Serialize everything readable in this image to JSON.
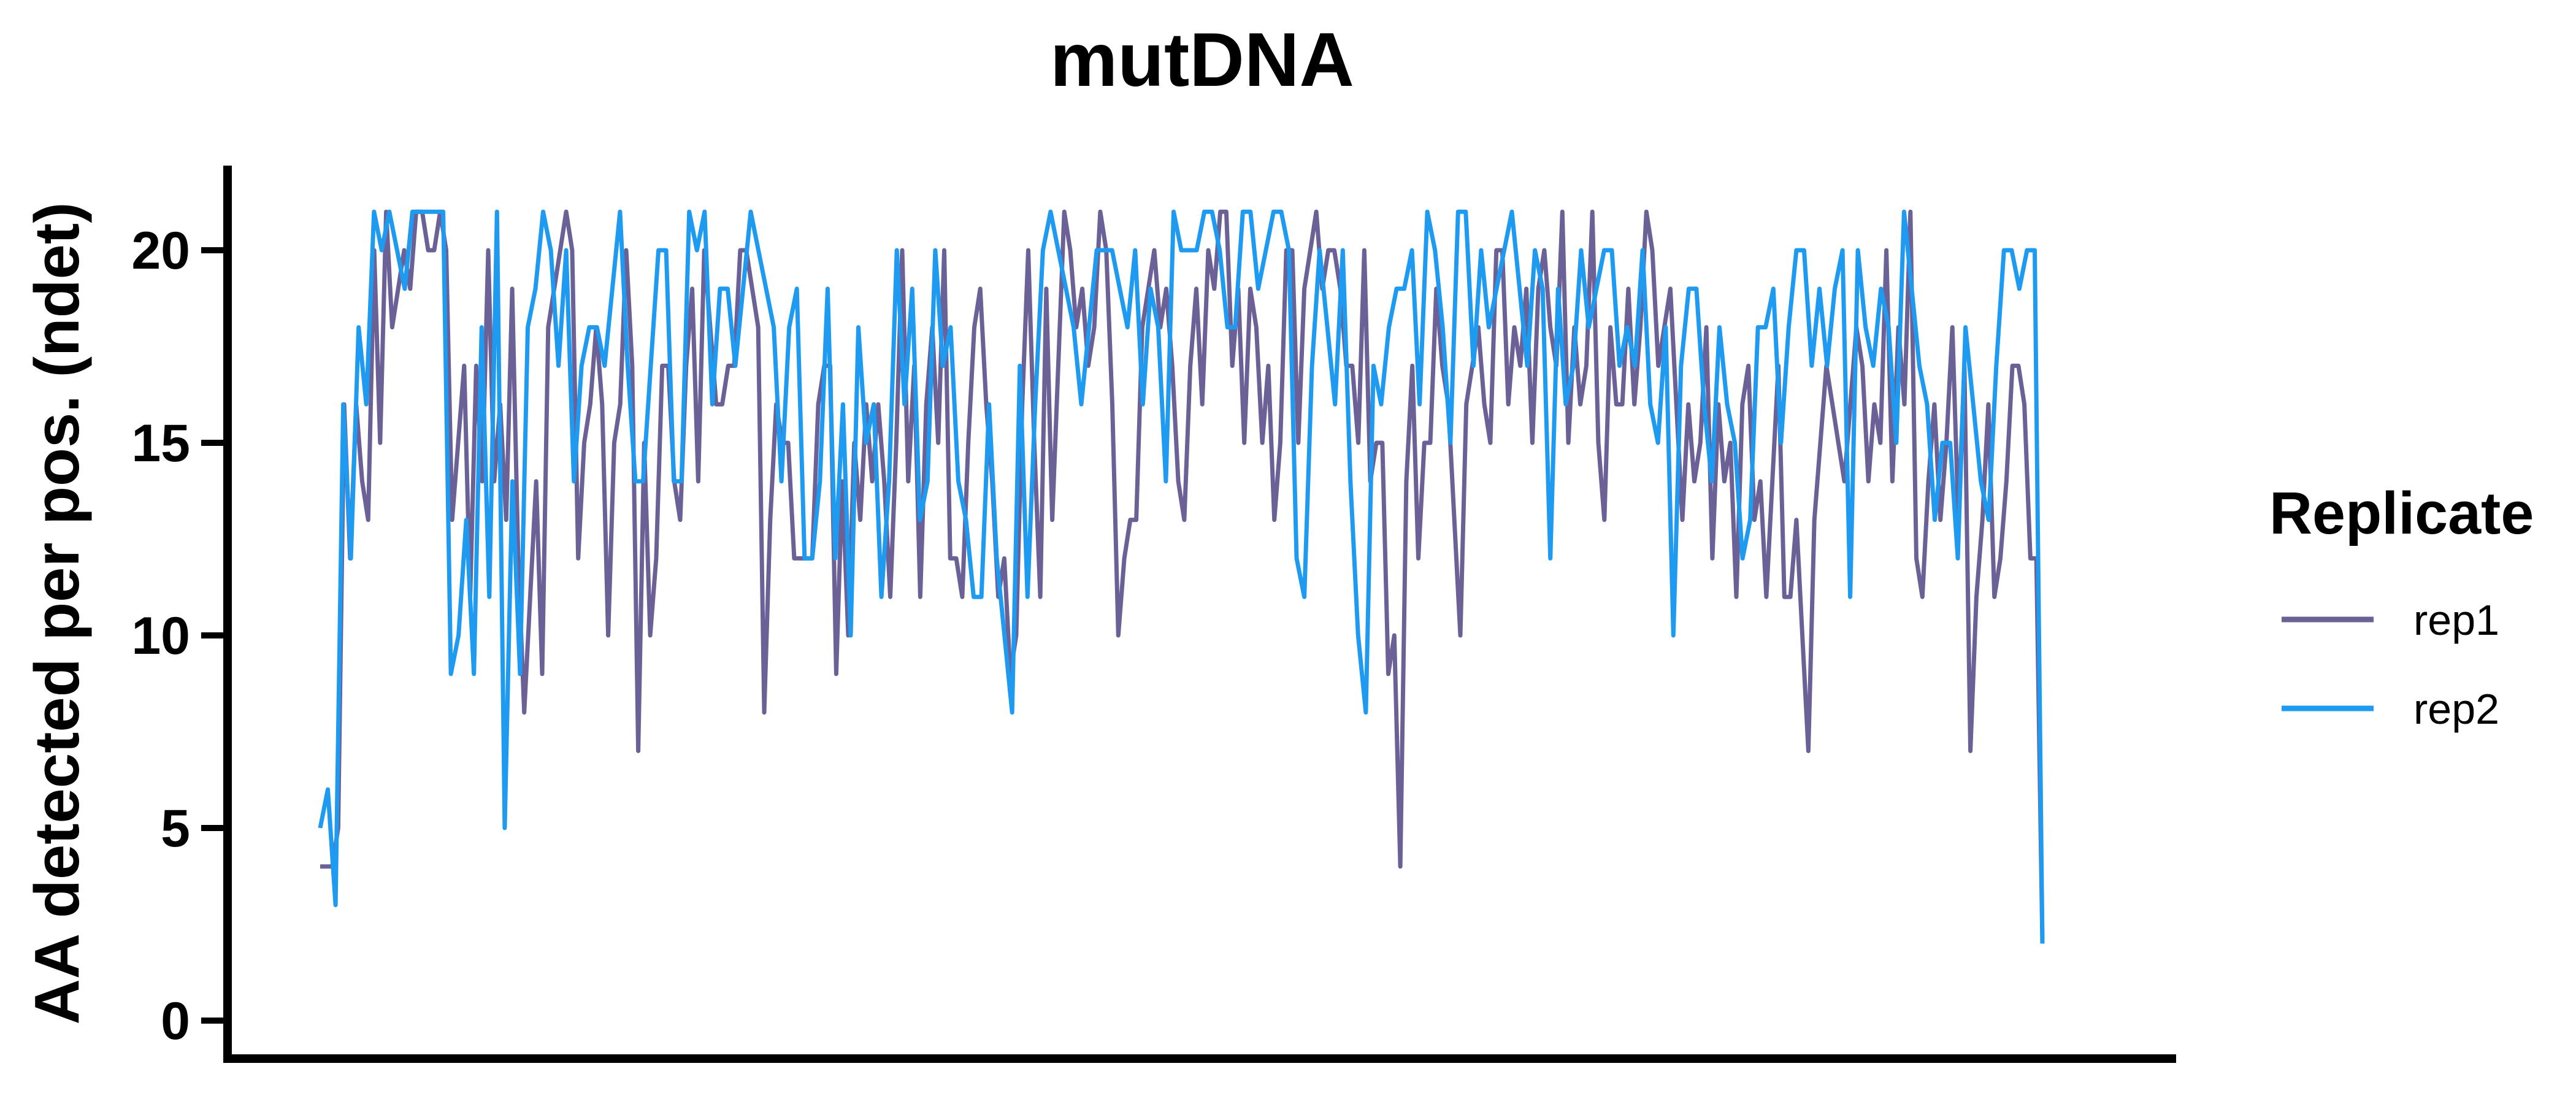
{
  "chart_data": {
    "type": "line",
    "title": "mutDNA",
    "xlabel": "",
    "ylabel": "AA detected per pos. (ndet)",
    "ylim": [
      0,
      22
    ],
    "yticks": [
      0,
      5,
      10,
      15,
      20
    ],
    "x_tick_labels": [],
    "grid": false,
    "legend": {
      "title": "Replicate",
      "position": "right"
    },
    "series": [
      {
        "name": "rep1",
        "color": "#6b6196",
        "x_start": 1,
        "values": [
          4,
          4,
          4,
          5,
          16,
          12,
          16,
          14,
          13,
          20,
          15,
          21,
          18,
          19,
          20,
          19,
          21,
          21,
          20,
          20,
          21,
          20,
          13,
          15,
          17,
          11,
          17,
          14,
          20,
          14,
          16,
          13,
          19,
          12,
          8,
          11,
          14,
          9,
          18,
          19,
          20,
          21,
          20,
          12,
          15,
          16,
          18,
          16,
          10,
          15,
          16,
          20,
          17,
          7,
          15,
          10,
          12,
          17,
          17,
          14,
          13,
          17,
          19,
          14,
          20,
          18,
          16,
          16,
          17,
          17,
          20,
          20,
          19,
          18,
          8,
          13,
          16,
          15,
          15,
          12,
          12,
          12,
          12,
          16,
          17,
          17,
          9,
          14,
          10,
          15,
          13,
          16,
          14,
          16,
          14,
          11,
          15,
          20,
          14,
          17,
          11,
          16,
          18,
          15,
          20,
          12,
          12,
          11,
          15,
          18,
          19,
          16,
          14,
          11,
          12,
          9,
          10,
          16,
          20,
          15,
          11,
          19,
          13,
          17,
          21,
          20,
          18,
          19,
          17,
          18,
          21,
          20,
          16,
          10,
          12,
          13,
          13,
          18,
          19,
          20,
          18,
          19,
          17,
          14,
          13,
          17,
          19,
          16,
          20,
          19,
          21,
          21,
          17,
          19,
          15,
          19,
          18,
          15,
          17,
          13,
          15,
          20,
          20,
          15,
          19,
          20,
          21,
          19,
          20,
          20,
          19,
          17,
          17,
          15,
          20,
          14,
          15,
          15,
          9,
          10,
          4,
          14,
          17,
          12,
          15,
          15,
          19,
          17,
          16,
          13,
          10,
          16,
          17,
          18,
          16,
          15,
          20,
          20,
          16,
          18,
          17,
          19,
          15,
          19,
          20,
          18,
          17,
          21,
          15,
          18,
          16,
          17,
          21,
          15,
          13,
          18,
          16,
          16,
          19,
          16,
          18,
          21,
          20,
          17,
          18,
          19,
          16,
          13,
          16,
          14,
          15,
          18,
          12,
          16,
          14,
          15,
          11,
          16,
          17,
          13,
          14,
          11,
          14,
          17,
          11,
          11,
          13,
          10,
          7,
          13,
          15,
          17,
          16,
          15,
          14,
          16,
          18,
          17,
          14,
          16,
          15,
          20,
          14,
          18,
          16,
          21,
          12,
          11,
          14,
          16,
          13,
          15,
          18,
          13,
          17,
          7,
          11,
          13,
          16,
          11,
          12,
          14,
          17,
          17,
          16,
          12,
          12,
          2
        ],
        "description_note": ""
      },
      {
        "name": "rep2",
        "color": "#1e9bf0",
        "x_start": 1,
        "values": [
          5,
          6,
          3,
          16,
          12,
          18,
          16,
          21,
          20,
          21,
          20,
          19,
          21,
          21,
          21,
          21,
          21,
          9,
          10,
          13,
          9,
          18,
          11,
          21,
          5,
          14,
          9,
          18,
          19,
          21,
          20,
          17,
          20,
          14,
          17,
          18,
          18,
          17,
          19,
          21,
          17,
          14,
          14,
          17,
          20,
          20,
          14,
          14,
          21,
          20,
          21,
          16,
          19,
          19,
          17,
          19,
          21,
          20,
          19,
          18,
          14,
          18,
          19,
          12,
          12,
          14,
          19,
          12,
          16,
          10,
          18,
          15,
          16,
          11,
          14,
          20,
          16,
          19,
          13,
          14,
          20,
          17,
          18,
          14,
          13,
          11,
          11,
          16,
          12,
          10,
          8,
          17,
          11,
          16,
          20,
          21,
          20,
          19,
          18,
          16,
          18,
          20,
          20,
          20,
          19,
          18,
          20,
          16,
          19,
          18,
          14,
          21,
          20,
          20,
          20,
          21,
          21,
          20,
          18,
          18,
          21,
          21,
          19,
          20,
          21,
          21,
          20,
          12,
          11,
          17,
          20,
          18,
          16,
          20,
          14,
          10,
          8,
          17,
          16,
          18,
          19,
          19,
          20,
          16,
          21,
          20,
          18,
          15,
          21,
          21,
          17,
          20,
          18,
          19,
          20,
          21,
          19,
          17,
          20,
          19,
          12,
          19,
          16,
          17,
          20,
          18,
          19,
          20,
          20,
          17,
          18,
          17,
          20,
          16,
          15,
          18,
          10,
          17,
          19,
          19,
          16,
          14,
          18,
          16,
          15,
          12,
          13,
          18,
          18,
          19,
          15,
          18,
          20,
          20,
          17,
          19,
          17,
          19,
          20,
          11,
          20,
          18,
          17,
          19,
          18,
          15,
          21,
          19,
          17,
          16,
          13,
          15,
          15,
          12,
          18,
          16,
          14,
          13,
          17,
          20,
          20,
          19,
          20,
          20,
          2
        ],
        "description_note": ""
      }
    ]
  }
}
